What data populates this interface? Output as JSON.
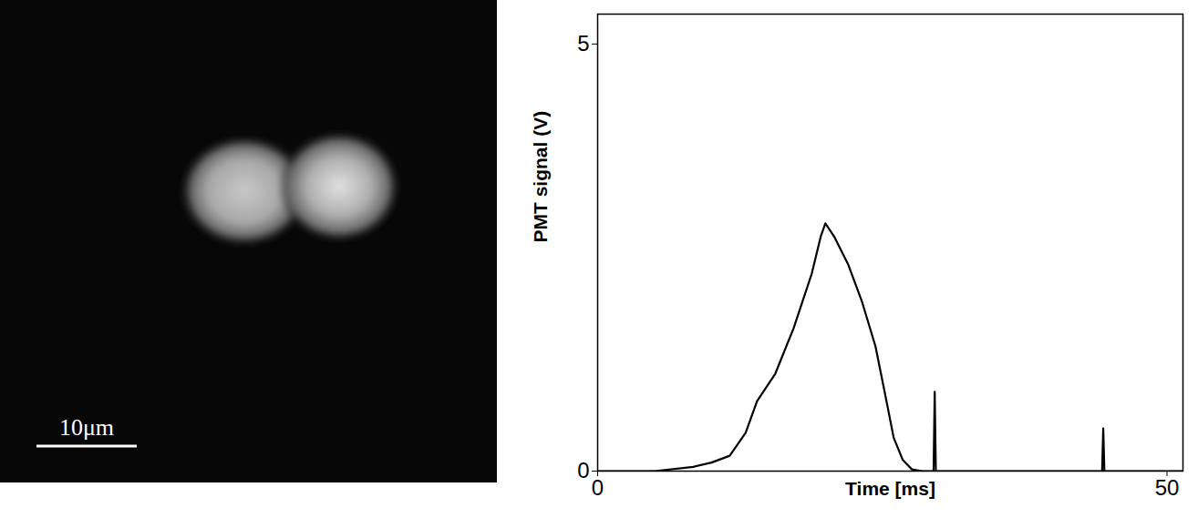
{
  "micrograph": {
    "scale_bar_label": "10μm"
  },
  "chart_data": {
    "type": "line",
    "xlabel": "Time [ms]",
    "ylabel": "PMT signal (V)",
    "x": [
      0,
      5,
      8.4,
      10,
      11.6,
      13,
      14,
      15.6,
      17.2,
      18.8,
      19.6,
      20,
      20.8,
      22,
      23.2,
      24.4,
      25.2,
      26,
      26.8,
      27.6,
      28.5,
      29.5,
      29.6,
      29.7,
      35,
      44.3,
      44.4,
      44.5,
      50,
      51.4
    ],
    "values": [
      0,
      0,
      0.05,
      0.1,
      0.18,
      0.45,
      0.82,
      1.14,
      1.67,
      2.31,
      2.75,
      2.9,
      2.74,
      2.42,
      1.99,
      1.46,
      0.93,
      0.39,
      0.13,
      0.02,
      0,
      0,
      0.93,
      0,
      0,
      0,
      0.5,
      0,
      0,
      0
    ],
    "color": "#000000",
    "xlim": [
      0,
      51.4
    ],
    "ylim": [
      0,
      5.35
    ],
    "xticks": [
      0,
      50
    ],
    "yticks": [
      0,
      5
    ],
    "grid": false
  }
}
